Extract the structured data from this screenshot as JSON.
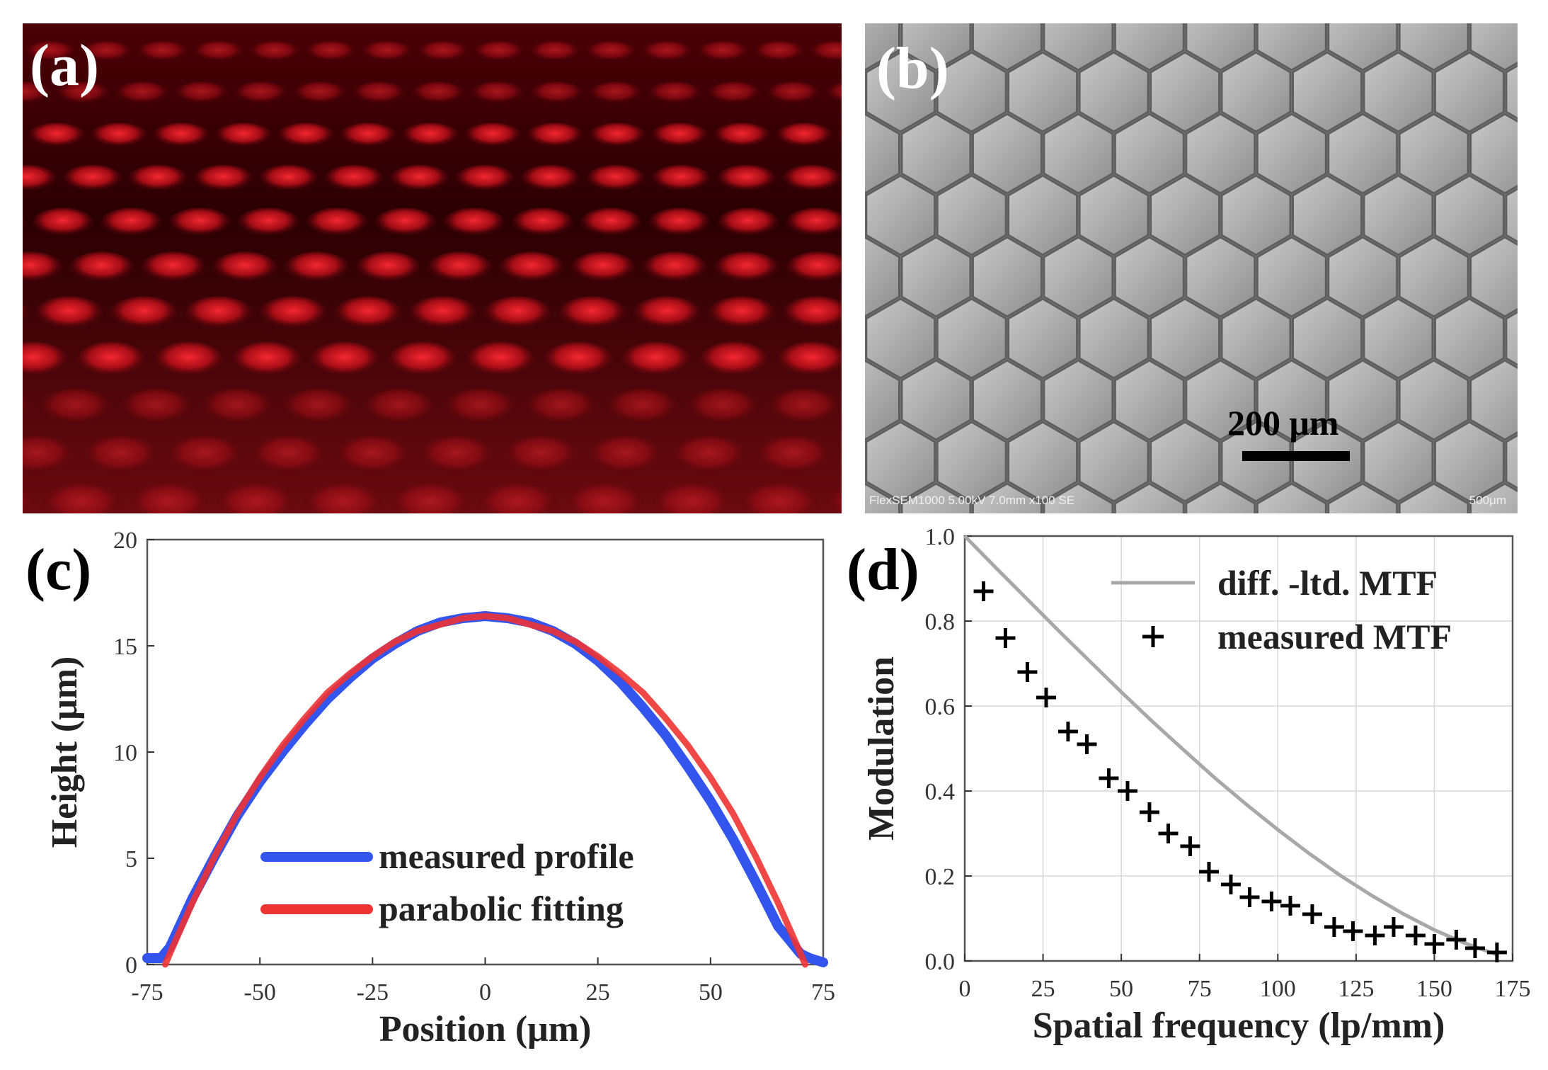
{
  "panels": {
    "a": {
      "label": "(a)"
    },
    "b": {
      "label": "(b)",
      "scale_bar": "200 μm",
      "sem_info": "FlexSEM1000 5.00kV 7.0mm x100 SE",
      "sem_scale": "500μm"
    },
    "c": {
      "label": "(c)"
    },
    "d": {
      "label": "(d)"
    }
  },
  "colors": {
    "measured_profile": "#3355ee",
    "parabolic_fitting": "#ee3333",
    "diff_ltd": "#a8a8a8",
    "measured_mtf": "#000000",
    "microscope_red": "#e0141e",
    "sem_gray": "#9a9a9a"
  },
  "chart_data": [
    {
      "type": "line",
      "title": "",
      "xlabel": "Position (μm)",
      "ylabel": "Height (μm)",
      "xlim": [
        -75,
        75
      ],
      "ylim": [
        0,
        20
      ],
      "xticks": [
        -75,
        -50,
        -25,
        0,
        25,
        50,
        75
      ],
      "yticks": [
        0,
        5,
        10,
        15,
        20
      ],
      "grid": false,
      "legend": "bottom-center",
      "series": [
        {
          "name": "measured profile",
          "x": [
            -75,
            -72,
            -70,
            -65,
            -60,
            -55,
            -50,
            -45,
            -40,
            -35,
            -30,
            -25,
            -20,
            -15,
            -10,
            -5,
            0,
            5,
            10,
            15,
            20,
            25,
            30,
            35,
            40,
            45,
            50,
            55,
            60,
            65,
            70,
            72,
            75
          ],
          "y": [
            0.3,
            0.3,
            0.8,
            3.1,
            5.1,
            7.0,
            8.6,
            10.0,
            11.3,
            12.5,
            13.5,
            14.4,
            15.1,
            15.7,
            16.1,
            16.3,
            16.4,
            16.3,
            16.1,
            15.7,
            15.1,
            14.3,
            13.3,
            12.1,
            10.8,
            9.3,
            7.7,
            5.9,
            3.9,
            1.8,
            0.5,
            0.3,
            0.1
          ]
        },
        {
          "name": "parabolic fitting",
          "x": [
            -71,
            -70,
            -65,
            -60,
            -55,
            -50,
            -45,
            -40,
            -35,
            -30,
            -25,
            -20,
            -15,
            -10,
            -5,
            0,
            5,
            10,
            15,
            20,
            25,
            30,
            35,
            40,
            45,
            50,
            55,
            60,
            65,
            70,
            71
          ],
          "y": [
            0.0,
            0.5,
            2.9,
            5.1,
            7.1,
            8.8,
            10.3,
            11.6,
            12.8,
            13.7,
            14.5,
            15.2,
            15.7,
            16.0,
            16.3,
            16.4,
            16.3,
            16.0,
            15.7,
            15.2,
            14.5,
            13.7,
            12.8,
            11.6,
            10.3,
            8.8,
            7.1,
            5.1,
            2.9,
            0.5,
            0.0
          ]
        }
      ]
    },
    {
      "type": "line",
      "title": "",
      "xlabel": "Spatial frequency (lp/mm)",
      "ylabel": "Modulation",
      "xlim": [
        0,
        175
      ],
      "ylim": [
        0.0,
        1.0
      ],
      "xticks": [
        0,
        25,
        50,
        75,
        100,
        125,
        150,
        175
      ],
      "yticks": [
        0.0,
        0.2,
        0.4,
        0.6,
        0.8,
        1.0
      ],
      "grid": true,
      "legend": "top-right",
      "series": [
        {
          "name": "diff. -ltd. MTF",
          "x": [
            0,
            10,
            20,
            30,
            40,
            50,
            60,
            70,
            80,
            90,
            100,
            110,
            120,
            130,
            140,
            150,
            160,
            170
          ],
          "y": [
            1.0,
            0.925,
            0.851,
            0.777,
            0.705,
            0.633,
            0.563,
            0.496,
            0.43,
            0.368,
            0.309,
            0.253,
            0.201,
            0.154,
            0.111,
            0.073,
            0.041,
            0.015
          ]
        },
        {
          "name": "measured MTF",
          "x": [
            6,
            13,
            20,
            26,
            33,
            39,
            46,
            52,
            59,
            65,
            72,
            78,
            85,
            91,
            98,
            104,
            111,
            118,
            124,
            131,
            137,
            144,
            150,
            157,
            163,
            170
          ],
          "y": [
            0.87,
            0.76,
            0.68,
            0.62,
            0.54,
            0.51,
            0.43,
            0.4,
            0.35,
            0.3,
            0.27,
            0.21,
            0.18,
            0.15,
            0.14,
            0.13,
            0.11,
            0.08,
            0.07,
            0.06,
            0.08,
            0.06,
            0.04,
            0.05,
            0.03,
            0.02
          ]
        }
      ]
    }
  ]
}
